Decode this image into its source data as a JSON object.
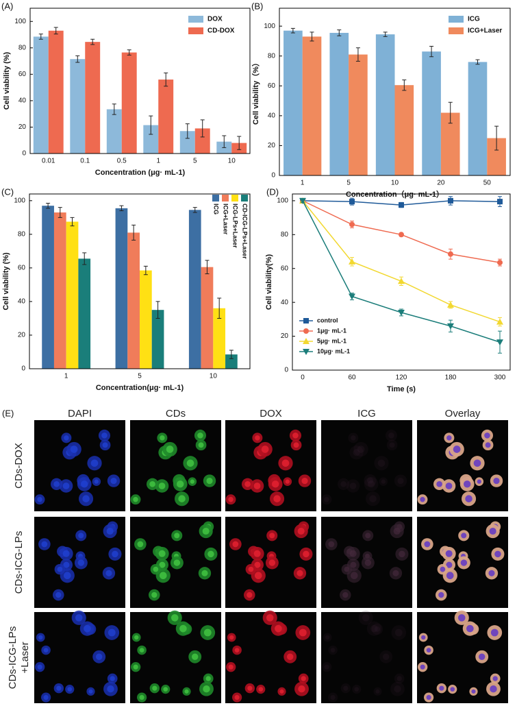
{
  "chart_data": [
    {
      "type": "bar",
      "panel_label": "(A)",
      "x_label": "Concentration (μg· mL-1)",
      "y_label": "Cell viability (%)",
      "categories": [
        "0.01",
        "0.1",
        "0.5",
        "1",
        "5",
        "10"
      ],
      "series": [
        {
          "name": "DOX",
          "color": "#8db9da",
          "values": [
            88.5,
            71.5,
            33.5,
            21.5,
            17,
            9
          ],
          "errors": [
            2,
            2.5,
            4,
            7,
            5.5,
            4.5
          ]
        },
        {
          "name": "CD-DOX",
          "color": "#ee6a50",
          "values": [
            93,
            84.5,
            76.5,
            56,
            19,
            8
          ],
          "errors": [
            2.5,
            2,
            2,
            5,
            6.5,
            5
          ]
        }
      ],
      "ylim": [
        0,
        110
      ],
      "yticks": [
        0,
        20,
        40,
        60,
        80,
        100
      ],
      "legend": "upper right"
    },
    {
      "type": "bar",
      "panel_label": "(B)",
      "x_label": "Concentration（μg· mL-1）",
      "y_label": "Cell viability（%）",
      "categories": [
        "1",
        "5",
        "10",
        "20",
        "50"
      ],
      "series": [
        {
          "name": "ICG",
          "color": "#7fb1d6",
          "values": [
            97,
            95.5,
            94.5,
            83,
            76
          ],
          "errors": [
            1.5,
            2,
            1.5,
            3.5,
            1.5
          ]
        },
        {
          "name": "ICG+Laser",
          "color": "#f08a5d",
          "values": [
            93,
            81,
            60.5,
            42,
            25
          ],
          "errors": [
            3,
            4.5,
            3.5,
            7,
            8
          ]
        }
      ],
      "ylim": [
        0,
        112
      ],
      "yticks": [
        0,
        20,
        40,
        60,
        80,
        100
      ],
      "legend": "upper right"
    },
    {
      "type": "bar",
      "panel_label": "(C)",
      "x_label": "Concentration(μg· mL-1)",
      "y_label": "Cell viability (%)",
      "categories": [
        "1",
        "5",
        "10"
      ],
      "series": [
        {
          "name": "ICG",
          "color": "#3d6fa3",
          "values": [
            97,
            95.5,
            94.5
          ],
          "errors": [
            1.5,
            1.5,
            1.5
          ]
        },
        {
          "name": "ICG+Laser",
          "color": "#f07c5a",
          "values": [
            93,
            81,
            60.5
          ],
          "errors": [
            3,
            4.5,
            4
          ]
        },
        {
          "name": "ICG-LPs+Laser",
          "color": "#ffe014",
          "values": [
            87.5,
            58.5,
            36
          ],
          "errors": [
            2.5,
            2.5,
            6
          ]
        },
        {
          "name": "CD-ICG-LPs+Laser",
          "color": "#1a7e7a",
          "values": [
            65.5,
            35,
            8.5
          ],
          "errors": [
            3.5,
            5,
            2.5
          ]
        }
      ],
      "ylim": [
        0,
        104
      ],
      "yticks": [
        0,
        20,
        40,
        60,
        80,
        100
      ],
      "legend": "upper right",
      "legend_rotated": true
    },
    {
      "type": "line",
      "panel_label": "(D)",
      "x_label": "Time (s)",
      "y_label": "Cell viability(%)",
      "categories": [
        "0",
        "60",
        "120",
        "180",
        "300"
      ],
      "series": [
        {
          "name": "control",
          "color": "#1f5a99",
          "marker": "square",
          "values": [
            100,
            99.5,
            97.5,
            100,
            99.5
          ],
          "errors": [
            1,
            2,
            1.5,
            2.5,
            3
          ]
        },
        {
          "name": "1μg· mL-1",
          "color": "#ef6a50",
          "marker": "circle",
          "values": [
            100,
            86,
            80,
            68.5,
            63.5
          ],
          "errors": [
            1,
            2,
            1,
            3,
            2
          ]
        },
        {
          "name": "5μg· mL-1",
          "color": "#f2d830",
          "marker": "triangle-up",
          "values": [
            100,
            64,
            52.5,
            38.5,
            28.5
          ],
          "errors": [
            1,
            2.5,
            2.5,
            2,
            2.5
          ]
        },
        {
          "name": "10μg· mL-1",
          "color": "#1b7d7a",
          "marker": "triangle-down",
          "values": [
            100,
            43.5,
            34,
            26,
            16.5
          ],
          "errors": [
            1,
            2,
            2,
            3.5,
            6.5
          ]
        }
      ],
      "ylim": [
        0,
        104
      ],
      "yticks": [
        0,
        20,
        40,
        60,
        80,
        100
      ],
      "legend": "lower left"
    }
  ],
  "panel_e": {
    "panel_label": "(E)",
    "columns": [
      "DAPI",
      "CDs",
      "DOX",
      "ICG",
      "Overlay"
    ],
    "rows": [
      [
        "CDs-DOX"
      ],
      [
        "CDs-ICG-LPs"
      ],
      [
        "CDs-ICG-LPs",
        "+Laser"
      ]
    ]
  }
}
